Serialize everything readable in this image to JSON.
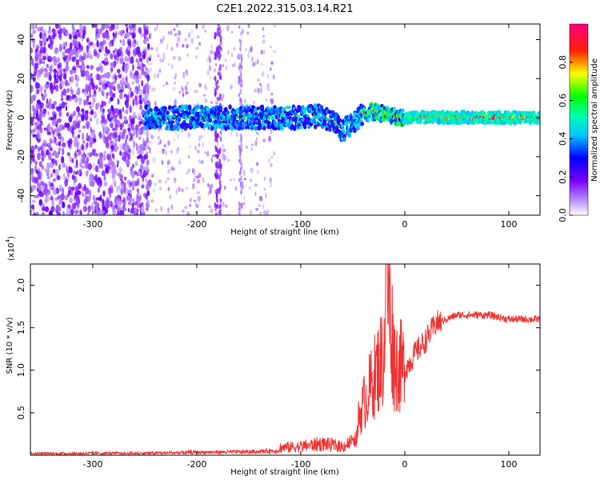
{
  "title": "C2E1.2022.315.03.14.R21",
  "chart_data": [
    {
      "type": "heatmap",
      "xlabel": "Height of straight line (km)",
      "ylabel": "Frequency (Hz)",
      "xlim": [
        -360,
        130
      ],
      "ylim": [
        -50,
        48
      ],
      "x_ticks": [
        -300,
        -200,
        -100,
        0,
        100
      ],
      "y_ticks": [
        -40,
        -20,
        0,
        20,
        40
      ],
      "colorbar": {
        "label": "Normalized spectral amplitude",
        "range": [
          0.0,
          1.0
        ],
        "ticks": [
          "0.0",
          "0.2",
          "0.4",
          "0.6",
          "0.8"
        ],
        "tick_values": [
          0.0,
          0.2,
          0.4,
          0.6,
          0.8
        ],
        "colors": [
          "#ffffff",
          "#7a00ff",
          "#0000ff",
          "#00ffff",
          "#00ff00",
          "#ffff00",
          "#ff0000",
          "#ff0080"
        ]
      },
      "ridge": {
        "description_points_x": [
          -250,
          -200,
          -150,
          -100,
          -80,
          -70,
          -60,
          -50,
          -40,
          -30,
          -20,
          -10,
          0,
          50,
          100,
          130
        ],
        "frequency": [
          0,
          0,
          0,
          0,
          1,
          -2,
          -6,
          -3,
          2,
          3,
          2,
          1,
          0,
          0,
          0,
          0
        ]
      }
    },
    {
      "type": "line",
      "xlabel": "Height of straight line (km)",
      "ylabel": "SNR (10 * v/v)",
      "multiplier": "(x10",
      "multiplier_exp": "4",
      "multiplier_close": ")",
      "xlim": [
        -360,
        130
      ],
      "ylim": [
        0,
        22500
      ],
      "x_ticks": [
        -300,
        -200,
        -100,
        0,
        100
      ],
      "y_ticks": [
        5000,
        10000,
        15000,
        20000
      ],
      "y_tick_labels": [
        "0.5",
        "1.0",
        "1.5",
        "2.0"
      ],
      "line_color": "#ee3333",
      "profile_x": [
        -360,
        -250,
        -200,
        -150,
        -120,
        -100,
        -80,
        -60,
        -50,
        -40,
        -30,
        -20,
        -18,
        -10,
        0,
        10,
        20,
        30,
        50,
        80,
        100,
        130
      ],
      "profile_y": [
        150,
        200,
        400,
        500,
        800,
        1000,
        1500,
        1000,
        2000,
        6000,
        9000,
        12000,
        22000,
        11000,
        10000,
        12000,
        13500,
        15500,
        16500,
        16500,
        16000,
        16000
      ]
    }
  ]
}
